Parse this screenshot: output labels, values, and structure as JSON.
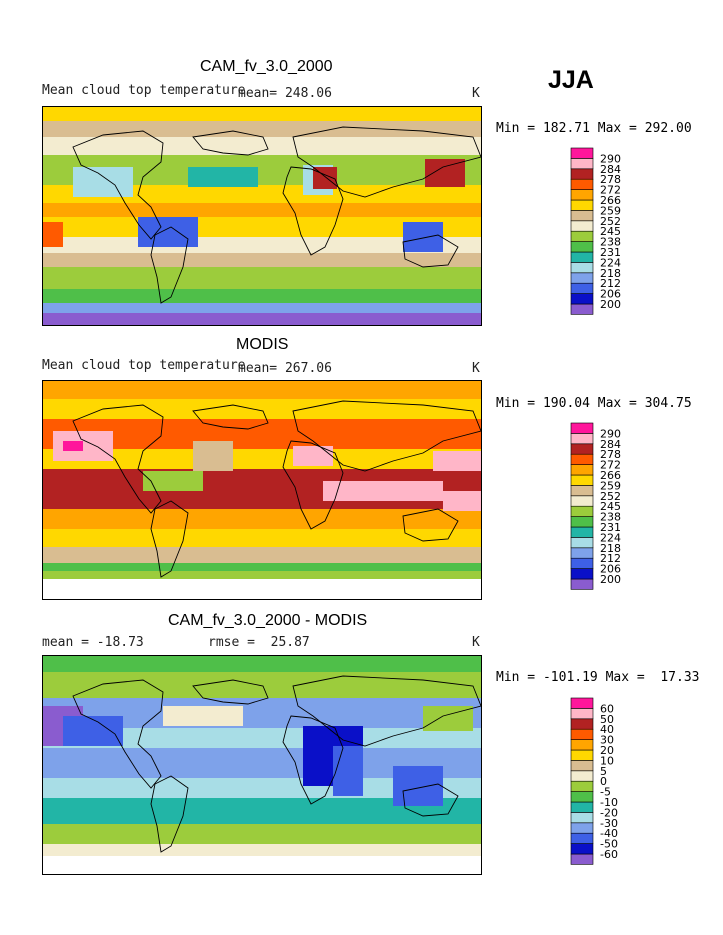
{
  "season": "JJA",
  "units": "K",
  "panels": [
    {
      "title": "CAM_fv_3.0_2000",
      "left_label": "Mean cloud top temperature",
      "mid_label": "mean= 248.06",
      "minmax": "Min = 182.71 Max = 292.00",
      "palette": [
        "#8a5ccf",
        "#0a10c8",
        "#3e60e6",
        "#7ea2ea",
        "#a8dde6",
        "#22b5a6",
        "#4fbf49",
        "#9ccc3c",
        "#f3ecd0",
        "#d9bd91",
        "#ffd800",
        "#ffa500",
        "#ff5a00",
        "#b22222",
        "#ffb6c8",
        "#ff169b"
      ],
      "levels": [
        "290",
        "284",
        "278",
        "272",
        "266",
        "259",
        "252",
        "245",
        "238",
        "231",
        "224",
        "218",
        "212",
        "206",
        "200"
      ],
      "layout_key": "top"
    },
    {
      "title": "MODIS",
      "left_label": "Mean cloud top temperature",
      "mid_label": "mean= 267.06",
      "minmax": "Min = 190.04 Max = 304.75",
      "palette": [
        "#8a5ccf",
        "#0a10c8",
        "#3e60e6",
        "#7ea2ea",
        "#a8dde6",
        "#22b5a6",
        "#4fbf49",
        "#9ccc3c",
        "#f3ecd0",
        "#d9bd91",
        "#ffd800",
        "#ffa500",
        "#ff5a00",
        "#b22222",
        "#ffb6c8",
        "#ff169b"
      ],
      "levels": [
        "290",
        "284",
        "278",
        "272",
        "266",
        "259",
        "252",
        "245",
        "238",
        "231",
        "224",
        "218",
        "212",
        "206",
        "200"
      ],
      "layout_key": "mid"
    },
    {
      "title": "CAM_fv_3.0_2000 - MODIS",
      "left_label": "mean = -18.73",
      "mid_label": "rmse =  25.87",
      "minmax": "Min = -101.19 Max =  17.33",
      "palette": [
        "#8a5ccf",
        "#0a10c8",
        "#3e60e6",
        "#7ea2ea",
        "#a8dde6",
        "#22b5a6",
        "#4fbf49",
        "#9ccc3c",
        "#f3ecd0",
        "#d9bd91",
        "#ffd800",
        "#ffa500",
        "#ff5a00",
        "#b22222",
        "#ffb6c8",
        "#ff169b"
      ],
      "levels": [
        "60",
        "50",
        "40",
        "30",
        "20",
        "10",
        "5",
        "0",
        "-5",
        "-10",
        "-20",
        "-30",
        "-40",
        "-50",
        "-60"
      ],
      "layout_key": "bot"
    }
  ],
  "chart_data": [
    {
      "type": "heatmap",
      "title": "CAM_fv_3.0_2000",
      "subtitle": "Mean cloud top temperature",
      "units": "K",
      "mean": 248.06,
      "min": 182.71,
      "max": 292.0,
      "levels": [
        200,
        206,
        212,
        218,
        224,
        231,
        238,
        245,
        252,
        259,
        266,
        272,
        278,
        284,
        290
      ]
    },
    {
      "type": "heatmap",
      "title": "MODIS",
      "subtitle": "Mean cloud top temperature",
      "units": "K",
      "mean": 267.06,
      "min": 190.04,
      "max": 304.75,
      "levels": [
        200,
        206,
        212,
        218,
        224,
        231,
        238,
        245,
        252,
        259,
        266,
        272,
        278,
        284,
        290
      ]
    },
    {
      "type": "heatmap",
      "title": "CAM_fv_3.0_2000 - MODIS",
      "units": "K",
      "mean": -18.73,
      "rmse": 25.87,
      "min": -101.19,
      "max": 17.33,
      "levels": [
        -60,
        -50,
        -40,
        -30,
        -20,
        -10,
        -5,
        0,
        5,
        10,
        20,
        30,
        40,
        50,
        60
      ]
    }
  ]
}
